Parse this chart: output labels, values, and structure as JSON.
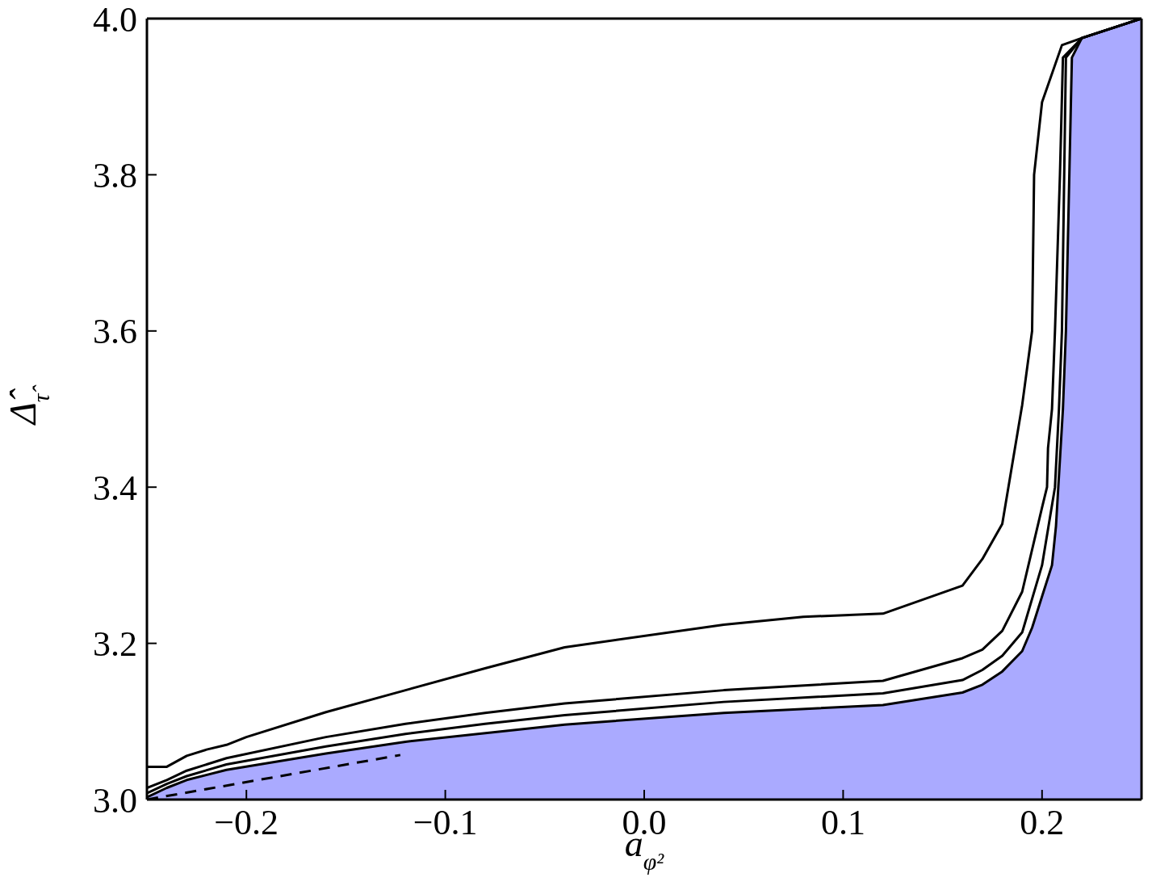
{
  "chart_data": {
    "type": "line",
    "xlabel": "a$_{φ²}$",
    "ylabel": "Δ̂$_{τ̂}$",
    "xlim": [
      -0.25,
      0.25
    ],
    "ylim": [
      3.0,
      4.0
    ],
    "xticks": [
      {
        "value": -0.2,
        "label": "−0.2"
      },
      {
        "value": -0.1,
        "label": "−0.1"
      },
      {
        "value": 0.0,
        "label": "0.0"
      },
      {
        "value": 0.1,
        "label": "0.1"
      },
      {
        "value": 0.2,
        "label": "0.2"
      }
    ],
    "yticks": [
      {
        "value": 3.0,
        "label": "3.0"
      },
      {
        "value": 3.2,
        "label": "3.2"
      },
      {
        "value": 3.4,
        "label": "3.4"
      },
      {
        "value": 3.6,
        "label": "3.6"
      },
      {
        "value": 3.8,
        "label": "3.8"
      },
      {
        "value": 4.0,
        "label": "4.0"
      }
    ],
    "grid": false,
    "legend": false,
    "series": [
      {
        "type": "area",
        "color": "#aaaaff",
        "x": [
          -0.25,
          -0.24,
          -0.23,
          -0.21,
          -0.16,
          -0.12,
          -0.04,
          0.04,
          0.12,
          0.16,
          0.17,
          0.18,
          0.19,
          0.195,
          0.2,
          0.205,
          0.207,
          0.2105,
          0.212,
          0.215,
          0.22,
          0.25
        ],
        "values": [
          3.003,
          3.015,
          3.025,
          3.038,
          3.059,
          3.074,
          3.096,
          3.111,
          3.121,
          3.137,
          3.147,
          3.164,
          3.19,
          3.22,
          3.26,
          3.3,
          3.35,
          3.5,
          3.6,
          3.95,
          3.975,
          4.0
        ]
      },
      {
        "color": "#000000",
        "x": [
          -0.25,
          -0.24,
          -0.23,
          -0.21,
          -0.16,
          -0.12,
          -0.08,
          -0.04,
          0.04,
          0.12,
          0.16,
          0.17,
          0.18,
          0.19,
          0.2,
          0.2065,
          0.2085,
          0.21,
          0.212,
          0.22,
          0.25
        ],
        "values": [
          3.008,
          3.02,
          3.03,
          3.045,
          3.068,
          3.084,
          3.097,
          3.108,
          3.125,
          3.136,
          3.153,
          3.166,
          3.184,
          3.214,
          3.3,
          3.4,
          3.5,
          3.6,
          3.95,
          3.975,
          4.0
        ]
      },
      {
        "color": "#000000",
        "x": [
          -0.25,
          -0.24,
          -0.23,
          -0.21,
          -0.16,
          -0.12,
          -0.08,
          -0.04,
          0.04,
          0.12,
          0.16,
          0.17,
          0.18,
          0.19,
          0.2,
          0.2025,
          0.203,
          0.205,
          0.2065,
          0.209,
          0.2105,
          0.22,
          0.25
        ],
        "values": [
          3.015,
          3.025,
          3.037,
          3.053,
          3.08,
          3.097,
          3.111,
          3.123,
          3.14,
          3.152,
          3.181,
          3.192,
          3.216,
          3.266,
          3.374,
          3.4,
          3.45,
          3.5,
          3.6,
          3.8,
          3.95,
          3.975,
          4.0
        ]
      },
      {
        "color": "#000000",
        "x": [
          -0.25,
          -0.24,
          -0.23,
          -0.22,
          -0.21,
          -0.2,
          -0.16,
          -0.12,
          -0.08,
          -0.04,
          0.04,
          0.08,
          0.12,
          0.16,
          0.17,
          0.18,
          0.19,
          0.195,
          0.196,
          0.2,
          0.21,
          0.22,
          0.25
        ],
        "values": [
          3.042,
          3.042,
          3.056,
          3.064,
          3.07,
          3.08,
          3.112,
          3.14,
          3.168,
          3.195,
          3.224,
          3.234,
          3.238,
          3.274,
          3.308,
          3.353,
          3.505,
          3.6,
          3.8,
          3.893,
          3.966,
          3.975,
          4.0
        ]
      },
      {
        "color": "#000000",
        "line_style": "dashed",
        "x": [
          -0.25,
          -0.1226
        ],
        "values": [
          3.0,
          3.057
        ]
      }
    ]
  }
}
